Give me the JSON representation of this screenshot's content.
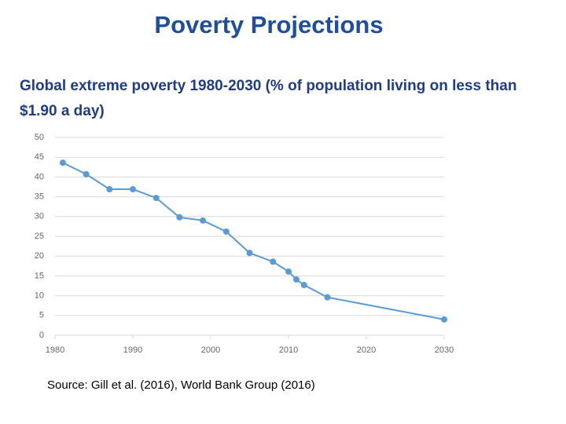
{
  "chart_data": {
    "type": "line",
    "title": "Poverty Projections",
    "subtitle": "Global extreme poverty 1980-2030 (% of population living on less than $1.90 a day)",
    "source": "Source: Gill et al. (2016), World Bank Group (2016)",
    "x": [
      1981,
      1984,
      1987,
      1990,
      1993,
      1996,
      1999,
      2002,
      2005,
      2008,
      2010,
      2011,
      2012,
      2015,
      2030
    ],
    "series": [
      {
        "color": "#5b9bd5",
        "values": [
          43.6,
          40.7,
          36.9,
          36.9,
          34.7,
          29.8,
          29.0,
          26.2,
          20.8,
          18.6,
          16.1,
          14.1,
          12.7,
          9.6,
          4.0
        ]
      }
    ],
    "xlim": [
      1980,
      2030
    ],
    "xticks": [
      1980,
      1990,
      2000,
      2010,
      2020,
      2030
    ],
    "ylim": [
      0,
      50
    ],
    "yticks": [
      0,
      5,
      10,
      15,
      20,
      25,
      30,
      35,
      40,
      45,
      50
    ],
    "grid": true
  }
}
